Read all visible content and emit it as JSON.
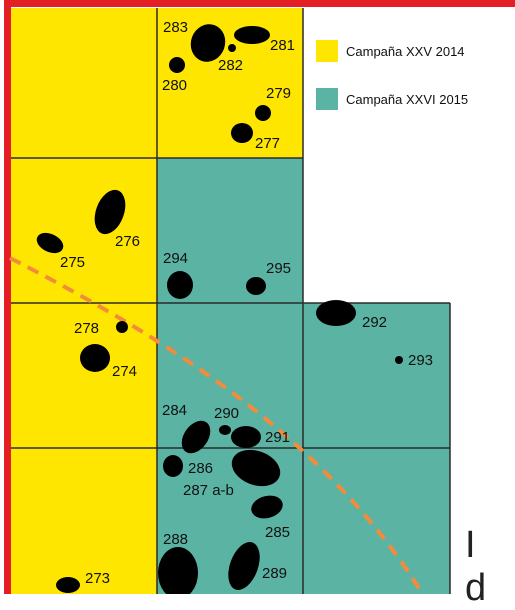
{
  "colors": {
    "campaign_2014": "#FFE600",
    "campaign_2015": "#5BB3A3",
    "border_red": "#E31E24",
    "grid_line": "#2b2b2b",
    "dashed_line": "#F28C3A",
    "feature": "#000000"
  },
  "legend": {
    "items": [
      {
        "label": "Campaña XXV 2014",
        "color": "#FFE600"
      },
      {
        "label": "Campaña XXVI 2015",
        "color": "#5BB3A3"
      }
    ]
  },
  "grid_reference": "I d",
  "feature_labels": {
    "l283": "283",
    "l281": "281",
    "l282": "282",
    "l280": "280",
    "l279": "279",
    "l277": "277",
    "l276": "276",
    "l275": "275",
    "l294": "294",
    "l295": "295",
    "l278": "278",
    "l274": "274",
    "l292": "292",
    "l293": "293",
    "l284": "284",
    "l290": "290",
    "l291": "291",
    "l286": "286",
    "l287": "287 a-b",
    "l285": "285",
    "l288": "288",
    "l289": "289",
    "l273": "273"
  }
}
